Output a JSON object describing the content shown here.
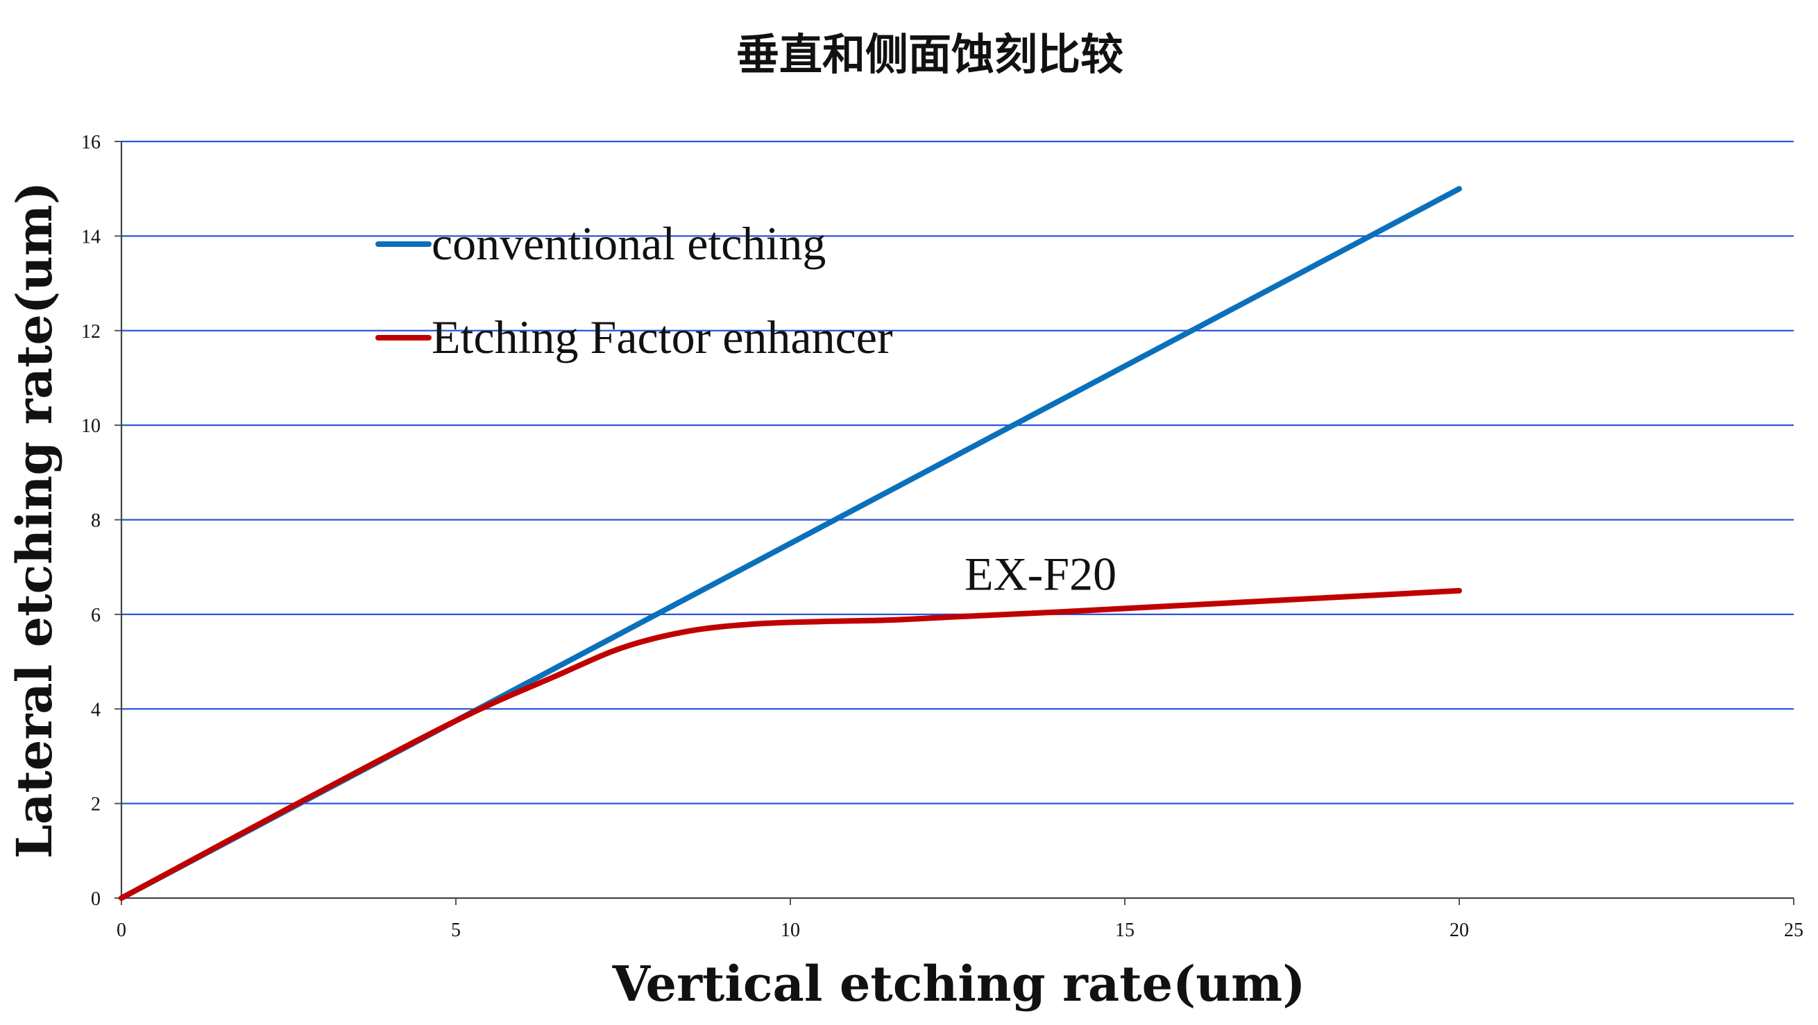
{
  "chart_data": {
    "type": "line",
    "title": "垂直和侧面蚀刻比较",
    "xlabel": "Vertical etching rate(um)",
    "ylabel": "Lateral etching rate(um)",
    "xlim": [
      0,
      25
    ],
    "ylim": [
      0,
      16
    ],
    "x_ticks": [
      "0",
      "5",
      "10",
      "15",
      "20",
      "25"
    ],
    "y_ticks": [
      "0",
      "2",
      "4",
      "6",
      "8",
      "10",
      "12",
      "14",
      "16"
    ],
    "grid": "horizontal",
    "legend_placement": "top-left",
    "series": [
      {
        "name": "conventional etching",
        "color": "#0B70BB",
        "x": [
          0,
          20
        ],
        "y": [
          0,
          15
        ]
      },
      {
        "name": "Etching Factor enhancer",
        "color": "#C00000",
        "x": [
          0,
          2.5,
          5,
          6.5,
          7.5,
          8.5,
          9.5,
          10.5,
          11.5,
          12.5,
          14,
          16,
          18,
          20
        ],
        "y": [
          0,
          1.9,
          3.75,
          4.7,
          5.3,
          5.65,
          5.8,
          5.85,
          5.88,
          5.95,
          6.05,
          6.2,
          6.35,
          6.5
        ]
      }
    ],
    "annotations": [
      {
        "text": "EX-F20",
        "x": 12.5,
        "y": 6.4
      }
    ]
  }
}
